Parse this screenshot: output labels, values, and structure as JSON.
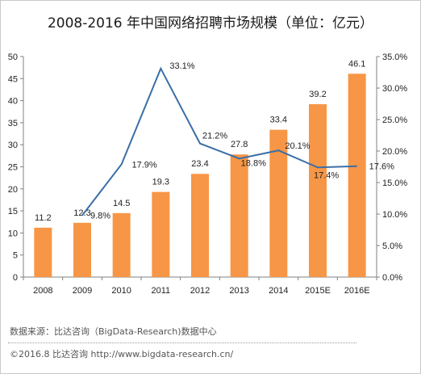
{
  "chart_data": {
    "type": "bar",
    "title": "2008-2016 年中国网络招聘市场规模（单位：亿元）",
    "categories": [
      "2008",
      "2009",
      "2010",
      "2011",
      "2012",
      "2013",
      "2014",
      "2015E",
      "2016E"
    ],
    "series": [
      {
        "type": "bar",
        "axis": "left",
        "values": [
          11.2,
          12.3,
          14.5,
          19.3,
          23.4,
          27.8,
          33.4,
          39.2,
          46.1
        ],
        "labels": [
          "11.2",
          "12.3",
          "14.5",
          "19.3",
          "23.4",
          "27.8",
          "33.4",
          "39.2",
          "46.1"
        ]
      },
      {
        "type": "line",
        "axis": "right",
        "values": [
          null,
          9.8,
          17.9,
          33.1,
          21.2,
          18.8,
          20.1,
          17.4,
          17.6
        ],
        "labels": [
          "",
          "9.8%",
          "17.9%",
          "33.1%",
          "21.2%",
          "18.8%",
          "20.1%",
          "17.4%",
          "17.6%"
        ]
      }
    ],
    "y_left": {
      "min": 0,
      "max": 50,
      "step": 5,
      "ticks": [
        "0",
        "5",
        "10",
        "15",
        "20",
        "25",
        "30",
        "35",
        "40",
        "45",
        "50"
      ]
    },
    "y_right": {
      "min": 0,
      "max": 35,
      "step": 5,
      "ticks": [
        "0.0%",
        "5.0%",
        "10.0%",
        "15.0%",
        "20.0%",
        "25.0%",
        "30.0%",
        "35.0%"
      ]
    },
    "grid": false,
    "legend": "none",
    "colors": {
      "bar": "#f79646",
      "line": "#3a6fa6",
      "axis": "#808080"
    }
  },
  "footer": {
    "source": "数据来源：比达咨询（BigData-Research)数据中心",
    "copyright": "©2016.8 比达咨询 http://www.bigdata-research.cn/"
  }
}
